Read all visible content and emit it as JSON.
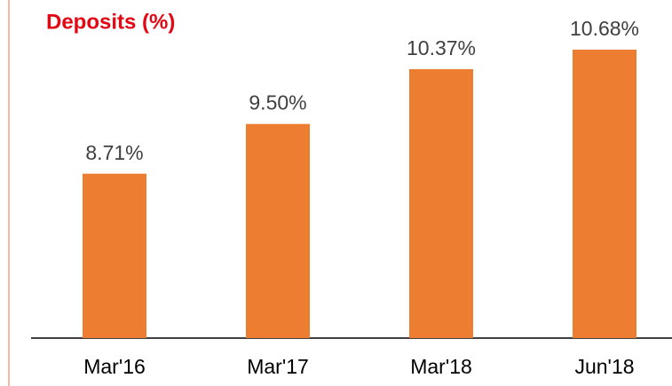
{
  "chart_data": {
    "type": "bar",
    "title": "Deposits (%)",
    "categories": [
      "Mar'16",
      "Mar'17",
      "Mar'18",
      "Jun'18"
    ],
    "values": [
      8.71,
      9.5,
      10.37,
      10.68
    ],
    "value_labels": [
      "8.71%",
      "9.50%",
      "10.37%",
      "10.68%"
    ],
    "color": "#ed7d31",
    "ylim": [
      6.1,
      11.2
    ]
  }
}
